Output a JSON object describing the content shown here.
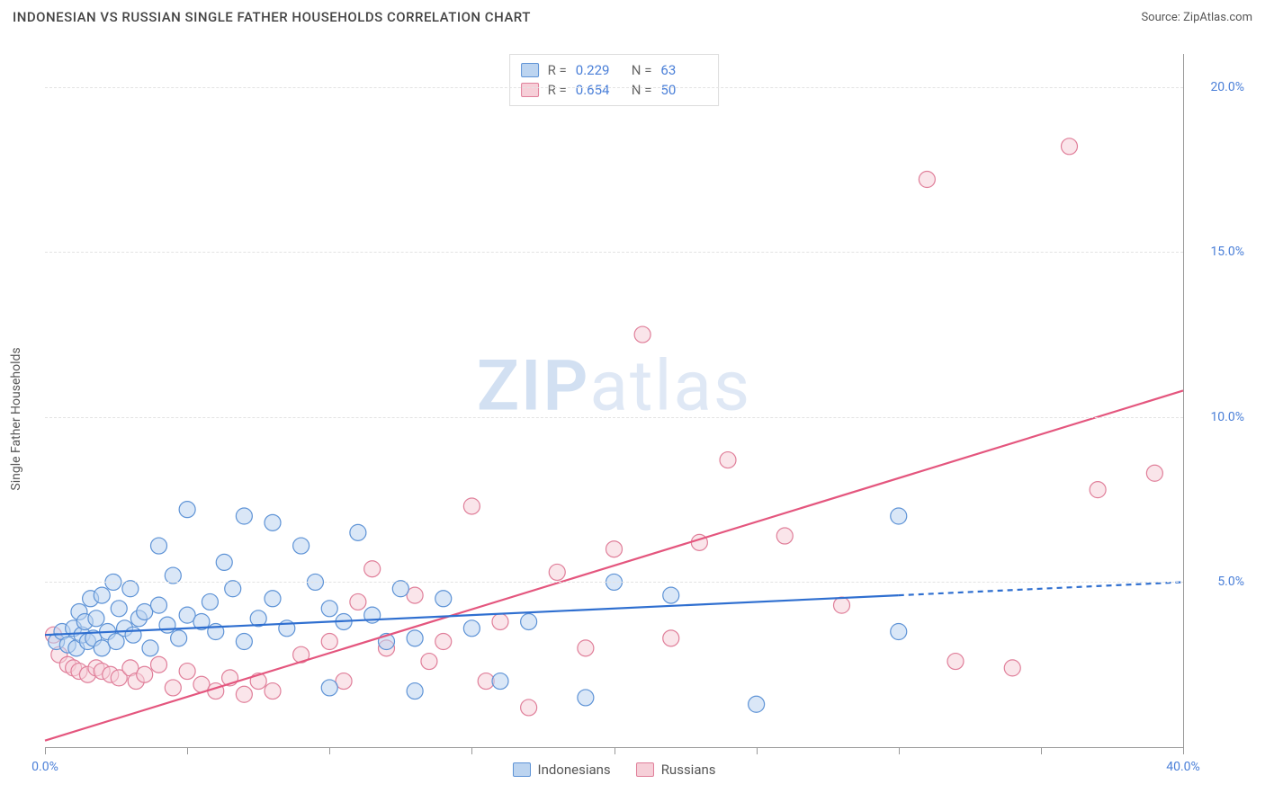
{
  "title": "INDONESIAN VS RUSSIAN SINGLE FATHER HOUSEHOLDS CORRELATION CHART",
  "source_label": "Source:",
  "source_name": "ZipAtlas.com",
  "ylabel": "Single Father Households",
  "watermark_a": "ZIP",
  "watermark_b": "atlas",
  "chart": {
    "type": "scatter",
    "xlim": [
      0,
      40
    ],
    "ylim": [
      0,
      21
    ],
    "x_ticks": [
      0,
      5,
      10,
      15,
      20,
      25,
      30,
      35,
      40
    ],
    "x_tick_labels": {
      "0": "0.0%",
      "40": "40.0%"
    },
    "y_ticks": [
      5,
      10,
      15,
      20
    ],
    "y_tick_labels": {
      "5": "5.0%",
      "10": "10.0%",
      "15": "15.0%",
      "20": "20.0%"
    },
    "background_color": "#ffffff",
    "grid_color": "#e3e3e3",
    "axis_color": "#999999",
    "tick_label_color": "#4a7fd8",
    "label_fontsize": 14,
    "title_fontsize": 15,
    "marker_radius": 9,
    "marker_stroke_width": 1.2,
    "line_width": 2.2,
    "series": {
      "indonesians": {
        "label": "Indonesians",
        "fill": "#bcd4f0",
        "stroke": "#5e93d6",
        "fill_opacity": 0.55,
        "R": "0.229",
        "N": "63",
        "trend": {
          "x1": 0,
          "y1": 3.4,
          "x2": 30,
          "y2": 4.6,
          "dash_after_x": 30,
          "dash_x2": 40,
          "dash_y2": 5.0,
          "dash_pattern": "6 5"
        },
        "points": [
          [
            0.4,
            3.2
          ],
          [
            0.6,
            3.5
          ],
          [
            0.8,
            3.1
          ],
          [
            1.0,
            3.6
          ],
          [
            1.1,
            3.0
          ],
          [
            1.2,
            4.1
          ],
          [
            1.3,
            3.4
          ],
          [
            1.4,
            3.8
          ],
          [
            1.5,
            3.2
          ],
          [
            1.6,
            4.5
          ],
          [
            1.7,
            3.3
          ],
          [
            1.8,
            3.9
          ],
          [
            2.0,
            3.0
          ],
          [
            2.0,
            4.6
          ],
          [
            2.2,
            3.5
          ],
          [
            2.4,
            5.0
          ],
          [
            2.5,
            3.2
          ],
          [
            2.6,
            4.2
          ],
          [
            2.8,
            3.6
          ],
          [
            3.0,
            4.8
          ],
          [
            3.1,
            3.4
          ],
          [
            3.3,
            3.9
          ],
          [
            3.5,
            4.1
          ],
          [
            3.7,
            3.0
          ],
          [
            4.0,
            4.3
          ],
          [
            4.0,
            6.1
          ],
          [
            4.3,
            3.7
          ],
          [
            4.5,
            5.2
          ],
          [
            4.7,
            3.3
          ],
          [
            5.0,
            4.0
          ],
          [
            5.0,
            7.2
          ],
          [
            5.5,
            3.8
          ],
          [
            5.8,
            4.4
          ],
          [
            6.0,
            3.5
          ],
          [
            6.3,
            5.6
          ],
          [
            6.6,
            4.8
          ],
          [
            7.0,
            3.2
          ],
          [
            7.0,
            7.0
          ],
          [
            7.5,
            3.9
          ],
          [
            8.0,
            6.8
          ],
          [
            8.0,
            4.5
          ],
          [
            8.5,
            3.6
          ],
          [
            9.0,
            6.1
          ],
          [
            9.5,
            5.0
          ],
          [
            10.0,
            4.2
          ],
          [
            10.0,
            1.8
          ],
          [
            10.5,
            3.8
          ],
          [
            11.0,
            6.5
          ],
          [
            11.5,
            4.0
          ],
          [
            12.0,
            3.2
          ],
          [
            12.5,
            4.8
          ],
          [
            13.0,
            3.3
          ],
          [
            13.0,
            1.7
          ],
          [
            14.0,
            4.5
          ],
          [
            15.0,
            3.6
          ],
          [
            16.0,
            2.0
          ],
          [
            17.0,
            3.8
          ],
          [
            19.0,
            1.5
          ],
          [
            20.0,
            5.0
          ],
          [
            22.0,
            4.6
          ],
          [
            25.0,
            1.3
          ],
          [
            30.0,
            7.0
          ],
          [
            30.0,
            3.5
          ]
        ]
      },
      "russians": {
        "label": "Russians",
        "fill": "#f6cfd8",
        "stroke": "#e07f9a",
        "fill_opacity": 0.55,
        "R": "0.654",
        "N": "50",
        "trend": {
          "x1": 0,
          "y1": 0.2,
          "x2": 40,
          "y2": 10.8
        },
        "points": [
          [
            0.3,
            3.4
          ],
          [
            0.5,
            2.8
          ],
          [
            0.8,
            2.5
          ],
          [
            1.0,
            2.4
          ],
          [
            1.2,
            2.3
          ],
          [
            1.5,
            2.2
          ],
          [
            1.8,
            2.4
          ],
          [
            2.0,
            2.3
          ],
          [
            2.3,
            2.2
          ],
          [
            2.6,
            2.1
          ],
          [
            3.0,
            2.4
          ],
          [
            3.2,
            2.0
          ],
          [
            3.5,
            2.2
          ],
          [
            4.0,
            2.5
          ],
          [
            4.5,
            1.8
          ],
          [
            5.0,
            2.3
          ],
          [
            5.5,
            1.9
          ],
          [
            6.0,
            1.7
          ],
          [
            6.5,
            2.1
          ],
          [
            7.0,
            1.6
          ],
          [
            7.5,
            2.0
          ],
          [
            8.0,
            1.7
          ],
          [
            9.0,
            2.8
          ],
          [
            10.0,
            3.2
          ],
          [
            10.5,
            2.0
          ],
          [
            11.0,
            4.4
          ],
          [
            11.5,
            5.4
          ],
          [
            12.0,
            3.0
          ],
          [
            13.0,
            4.6
          ],
          [
            13.5,
            2.6
          ],
          [
            14.0,
            3.2
          ],
          [
            15.0,
            7.3
          ],
          [
            15.5,
            2.0
          ],
          [
            16.0,
            3.8
          ],
          [
            17.0,
            1.2
          ],
          [
            18.0,
            5.3
          ],
          [
            19.0,
            3.0
          ],
          [
            20.0,
            6.0
          ],
          [
            21.0,
            12.5
          ],
          [
            22.0,
            3.3
          ],
          [
            23.0,
            6.2
          ],
          [
            24.0,
            8.7
          ],
          [
            26.0,
            6.4
          ],
          [
            28.0,
            4.3
          ],
          [
            31.0,
            17.2
          ],
          [
            32.0,
            2.6
          ],
          [
            34.0,
            2.4
          ],
          [
            36.0,
            18.2
          ],
          [
            37.0,
            7.8
          ],
          [
            39.0,
            8.3
          ]
        ]
      }
    }
  },
  "legend_stat_labels": {
    "R": "R =",
    "N": "N ="
  }
}
